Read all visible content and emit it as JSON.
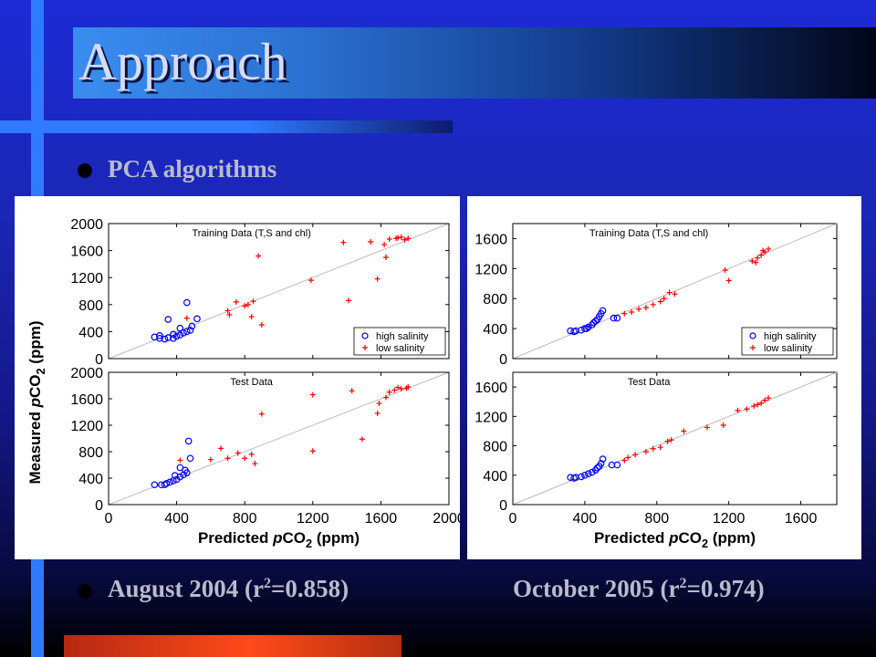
{
  "slide": {
    "title": "Approach",
    "bullet1": "PCA algorithms",
    "caption_left": "August 2004 (r",
    "caption_left_sup": "2",
    "caption_left_tail": "=0.858)",
    "caption_right": "October 2005 (r",
    "caption_right_sup": "2",
    "caption_right_tail": "=0.974)"
  },
  "colors": {
    "high_salinity": "#0000ff",
    "low_salinity": "#ff0000",
    "one_to_one": "#bbbbbb"
  },
  "chart_data": [
    {
      "type": "scatter",
      "title": "Training Data (T,S and chl)",
      "xlim": [
        0,
        2000
      ],
      "ylim": [
        0,
        2000
      ],
      "xticks": [
        0,
        400,
        800,
        1200,
        1600,
        2000
      ],
      "yticks": [
        0,
        400,
        800,
        1200,
        1600,
        2000
      ],
      "show_xtick_labels": false,
      "legend": [
        "high salinity",
        "low salinity"
      ],
      "legend_position": "bottom-right",
      "series": [
        {
          "name": "high salinity",
          "marker": "circle",
          "points": [
            [
              270,
              320
            ],
            [
              300,
              300
            ],
            [
              330,
              290
            ],
            [
              350,
              310
            ],
            [
              380,
              300
            ],
            [
              400,
              330
            ],
            [
              420,
              350
            ],
            [
              380,
              360
            ],
            [
              440,
              380
            ],
            [
              460,
              400
            ],
            [
              480,
              420
            ],
            [
              350,
              580
            ],
            [
              460,
              830
            ],
            [
              520,
              590
            ],
            [
              490,
              480
            ],
            [
              420,
              450
            ],
            [
              300,
              340
            ]
          ]
        },
        {
          "name": "low salinity",
          "marker": "plus",
          "points": [
            [
              460,
              600
            ],
            [
              700,
              710
            ],
            [
              710,
              650
            ],
            [
              750,
              840
            ],
            [
              800,
              780
            ],
            [
              820,
              800
            ],
            [
              850,
              850
            ],
            [
              840,
              620
            ],
            [
              880,
              1520
            ],
            [
              900,
              500
            ],
            [
              1190,
              1160
            ],
            [
              1410,
              860
            ],
            [
              1380,
              1720
            ],
            [
              1540,
              1730
            ],
            [
              1580,
              1180
            ],
            [
              1620,
              1690
            ],
            [
              1650,
              1770
            ],
            [
              1700,
              1790
            ],
            [
              1720,
              1800
            ],
            [
              1740,
              1760
            ],
            [
              1760,
              1780
            ],
            [
              1690,
              1780
            ],
            [
              1630,
              1500
            ]
          ]
        }
      ]
    },
    {
      "type": "scatter",
      "title": "Test Data",
      "xlabel": "Predicted pCO2 (ppm)",
      "ylabel": "Measured pCO2 (ppm)",
      "xlim": [
        0,
        2000
      ],
      "ylim": [
        0,
        2000
      ],
      "xticks": [
        0,
        400,
        800,
        1200,
        1600,
        2000
      ],
      "yticks": [
        0,
        400,
        800,
        1200,
        1600,
        2000
      ],
      "show_xtick_labels": true,
      "series": [
        {
          "name": "high salinity",
          "marker": "circle",
          "points": [
            [
              270,
              300
            ],
            [
              310,
              300
            ],
            [
              340,
              320
            ],
            [
              360,
              340
            ],
            [
              380,
              360
            ],
            [
              400,
              380
            ],
            [
              420,
              420
            ],
            [
              440,
              450
            ],
            [
              460,
              480
            ],
            [
              420,
              560
            ],
            [
              470,
              960
            ],
            [
              480,
              700
            ],
            [
              450,
              520
            ],
            [
              390,
              440
            ],
            [
              330,
              300
            ]
          ]
        },
        {
          "name": "low salinity",
          "marker": "plus",
          "points": [
            [
              420,
              670
            ],
            [
              600,
              680
            ],
            [
              660,
              850
            ],
            [
              700,
              700
            ],
            [
              760,
              780
            ],
            [
              800,
              700
            ],
            [
              840,
              760
            ],
            [
              860,
              620
            ],
            [
              900,
              1370
            ],
            [
              1200,
              810
            ],
            [
              1200,
              1660
            ],
            [
              1430,
              1720
            ],
            [
              1490,
              990
            ],
            [
              1580,
              1380
            ],
            [
              1590,
              1530
            ],
            [
              1630,
              1620
            ],
            [
              1680,
              1730
            ],
            [
              1700,
              1770
            ],
            [
              1720,
              1750
            ],
            [
              1750,
              1760
            ],
            [
              1760,
              1780
            ],
            [
              1650,
              1700
            ]
          ]
        }
      ]
    },
    {
      "type": "scatter",
      "title": "Training Data (T,S and chl)",
      "xlim": [
        0,
        1800
      ],
      "ylim": [
        0,
        1800
      ],
      "xticks": [
        0,
        400,
        800,
        1200,
        1600
      ],
      "yticks": [
        0,
        400,
        800,
        1200,
        1600
      ],
      "show_xtick_labels": false,
      "legend": [
        "high salinity",
        "low salinity"
      ],
      "legend_position": "bottom-right",
      "series": [
        {
          "name": "high salinity",
          "marker": "circle",
          "points": [
            [
              320,
              370
            ],
            [
              350,
              370
            ],
            [
              380,
              380
            ],
            [
              400,
              400
            ],
            [
              420,
              420
            ],
            [
              440,
              450
            ],
            [
              450,
              480
            ],
            [
              470,
              520
            ],
            [
              480,
              560
            ],
            [
              490,
              600
            ],
            [
              500,
              640
            ],
            [
              460,
              500
            ],
            [
              410,
              400
            ],
            [
              560,
              540
            ],
            [
              580,
              540
            ],
            [
              340,
              360
            ]
          ]
        },
        {
          "name": "low salinity",
          "marker": "plus",
          "points": [
            [
              620,
              600
            ],
            [
              660,
              620
            ],
            [
              700,
              660
            ],
            [
              740,
              680
            ],
            [
              780,
              720
            ],
            [
              820,
              760
            ],
            [
              840,
              800
            ],
            [
              870,
              880
            ],
            [
              900,
              860
            ],
            [
              1180,
              1180
            ],
            [
              1200,
              1040
            ],
            [
              1330,
              1300
            ],
            [
              1360,
              1340
            ],
            [
              1380,
              1380
            ],
            [
              1400,
              1420
            ],
            [
              1420,
              1460
            ],
            [
              1350,
              1280
            ],
            [
              1390,
              1440
            ]
          ]
        }
      ]
    },
    {
      "type": "scatter",
      "title": "Test Data",
      "xlabel": "Predicted pCO2 (ppm)",
      "xlim": [
        0,
        1800
      ],
      "ylim": [
        0,
        1800
      ],
      "xticks": [
        0,
        400,
        800,
        1200,
        1600
      ],
      "yticks": [
        0,
        400,
        800,
        1200,
        1600
      ],
      "show_xtick_labels": true,
      "series": [
        {
          "name": "high salinity",
          "marker": "circle",
          "points": [
            [
              320,
              370
            ],
            [
              350,
              370
            ],
            [
              380,
              380
            ],
            [
              400,
              400
            ],
            [
              420,
              420
            ],
            [
              440,
              440
            ],
            [
              460,
              470
            ],
            [
              480,
              520
            ],
            [
              490,
              560
            ],
            [
              500,
              620
            ],
            [
              470,
              500
            ],
            [
              550,
              540
            ],
            [
              580,
              540
            ],
            [
              340,
              360
            ]
          ]
        },
        {
          "name": "low salinity",
          "marker": "plus",
          "points": [
            [
              620,
              600
            ],
            [
              640,
              640
            ],
            [
              680,
              680
            ],
            [
              740,
              720
            ],
            [
              780,
              760
            ],
            [
              820,
              780
            ],
            [
              860,
              860
            ],
            [
              880,
              880
            ],
            [
              950,
              1000
            ],
            [
              1080,
              1050
            ],
            [
              1170,
              1080
            ],
            [
              1250,
              1280
            ],
            [
              1340,
              1340
            ],
            [
              1360,
              1360
            ],
            [
              1380,
              1380
            ],
            [
              1400,
              1420
            ],
            [
              1420,
              1450
            ],
            [
              1300,
              1300
            ]
          ]
        }
      ]
    }
  ]
}
